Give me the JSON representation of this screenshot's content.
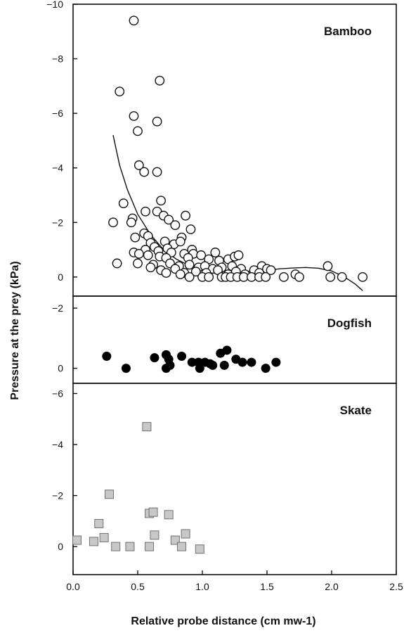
{
  "chart_data": {
    "type": "scatter",
    "xlabel": "Relative probe distance (cm mw-1)",
    "ylabel": "Pressure at the prey (kPa)",
    "xlim": [
      0,
      2.5
    ],
    "xticks": [
      "0.0",
      "0.5",
      "1.0",
      "1.5",
      "2.0",
      "2.5"
    ],
    "panels": [
      {
        "title": "Bamboo",
        "ylim": [
          0.7,
          -10
        ],
        "yticks": [
          {
            "v": -10,
            "label": "−10"
          },
          {
            "v": -8,
            "label": "−8"
          },
          {
            "v": -6,
            "label": "−6"
          },
          {
            "v": -4,
            "label": "−4"
          },
          {
            "v": -2,
            "label": "−2"
          },
          {
            "v": 0,
            "label": "0"
          }
        ],
        "marker": "open-circle",
        "points": [
          [
            0.47,
            -9.4
          ],
          [
            0.36,
            -6.8
          ],
          [
            0.67,
            -7.2
          ],
          [
            0.47,
            -5.9
          ],
          [
            0.5,
            -5.35
          ],
          [
            0.65,
            -5.7
          ],
          [
            0.51,
            -4.1
          ],
          [
            0.55,
            -3.85
          ],
          [
            0.65,
            -3.85
          ],
          [
            0.39,
            -2.7
          ],
          [
            0.68,
            -2.8
          ],
          [
            0.56,
            -2.4
          ],
          [
            0.65,
            -2.4
          ],
          [
            0.46,
            -2.15
          ],
          [
            0.7,
            -2.25
          ],
          [
            0.87,
            -2.25
          ],
          [
            0.31,
            -2.0
          ],
          [
            0.45,
            -2.0
          ],
          [
            0.74,
            -2.1
          ],
          [
            0.79,
            -1.9
          ],
          [
            0.91,
            -1.75
          ],
          [
            0.55,
            -1.6
          ],
          [
            0.58,
            -1.5
          ],
          [
            0.48,
            -1.45
          ],
          [
            0.84,
            -1.45
          ],
          [
            0.71,
            -1.3
          ],
          [
            0.6,
            -1.25
          ],
          [
            0.78,
            -1.2
          ],
          [
            0.83,
            -1.3
          ],
          [
            0.63,
            -1.1
          ],
          [
            0.73,
            -1.05
          ],
          [
            0.92,
            -1.0
          ],
          [
            0.56,
            -1.0
          ],
          [
            0.47,
            -0.9
          ],
          [
            0.66,
            -0.95
          ],
          [
            0.76,
            -0.9
          ],
          [
            0.86,
            -0.85
          ],
          [
            0.93,
            -0.85
          ],
          [
            0.99,
            -0.8
          ],
          [
            1.1,
            -0.9
          ],
          [
            0.51,
            -0.85
          ],
          [
            0.58,
            -0.8
          ],
          [
            0.67,
            -0.75
          ],
          [
            0.72,
            -0.7
          ],
          [
            0.89,
            -0.7
          ],
          [
            1.05,
            -0.65
          ],
          [
            1.13,
            -0.6
          ],
          [
            1.2,
            -0.65
          ],
          [
            1.25,
            -0.75
          ],
          [
            1.28,
            -0.8
          ],
          [
            0.34,
            -0.5
          ],
          [
            0.5,
            -0.5
          ],
          [
            0.62,
            -0.45
          ],
          [
            0.75,
            -0.5
          ],
          [
            0.82,
            -0.4
          ],
          [
            0.9,
            -0.45
          ],
          [
            0.97,
            -0.35
          ],
          [
            1.02,
            -0.4
          ],
          [
            1.08,
            -0.3
          ],
          [
            1.15,
            -0.35
          ],
          [
            1.23,
            -0.4
          ],
          [
            1.3,
            -0.3
          ],
          [
            1.4,
            -0.25
          ],
          [
            1.46,
            -0.4
          ],
          [
            1.5,
            -0.3
          ],
          [
            1.53,
            -0.25
          ],
          [
            0.6,
            -0.35
          ],
          [
            0.68,
            -0.25
          ],
          [
            0.79,
            -0.3
          ],
          [
            0.86,
            -0.15
          ],
          [
            0.95,
            -0.2
          ],
          [
            1.03,
            -0.15
          ],
          [
            1.12,
            -0.25
          ],
          [
            1.2,
            -0.1
          ],
          [
            1.26,
            -0.2
          ],
          [
            1.33,
            -0.1
          ],
          [
            1.44,
            -0.15
          ],
          [
            0.72,
            -0.15
          ],
          [
            0.83,
            -0.1
          ],
          [
            0.9,
            0.0
          ],
          [
            1.0,
            0.0
          ],
          [
            1.05,
            0.0
          ],
          [
            1.15,
            0.0
          ],
          [
            1.18,
            0.0
          ],
          [
            1.22,
            0.0
          ],
          [
            1.27,
            0.0
          ],
          [
            1.32,
            0.0
          ],
          [
            1.38,
            0.0
          ],
          [
            1.44,
            0.0
          ],
          [
            1.49,
            0.0
          ],
          [
            1.63,
            0.0
          ],
          [
            1.72,
            -0.1
          ],
          [
            1.75,
            0.0
          ],
          [
            1.97,
            -0.4
          ],
          [
            1.99,
            0.0
          ],
          [
            2.08,
            0.0
          ],
          [
            2.24,
            0.0
          ]
        ],
        "fit_curve": [
          [
            0.31,
            -5.2
          ],
          [
            0.36,
            -4.1
          ],
          [
            0.42,
            -3.2
          ],
          [
            0.5,
            -2.3
          ],
          [
            0.6,
            -1.55
          ],
          [
            0.7,
            -1.0
          ],
          [
            0.8,
            -0.65
          ],
          [
            0.9,
            -0.42
          ],
          [
            1.0,
            -0.3
          ],
          [
            1.1,
            -0.25
          ],
          [
            1.2,
            -0.22
          ],
          [
            1.3,
            -0.2
          ],
          [
            1.4,
            -0.22
          ],
          [
            1.5,
            -0.25
          ],
          [
            1.6,
            -0.3
          ],
          [
            1.7,
            -0.33
          ],
          [
            1.8,
            -0.35
          ],
          [
            1.9,
            -0.32
          ],
          [
            2.0,
            -0.22
          ],
          [
            2.1,
            0.0
          ],
          [
            2.18,
            0.25
          ],
          [
            2.24,
            0.5
          ]
        ]
      },
      {
        "title": "Dogfish",
        "ylim": [
          0.5,
          -2.4
        ],
        "yticks": [
          {
            "v": -2,
            "label": "−2"
          },
          {
            "v": 0,
            "label": "0"
          }
        ],
        "marker": "filled-circle",
        "points": [
          [
            0.26,
            -0.4
          ],
          [
            0.41,
            0.0
          ],
          [
            0.63,
            -0.35
          ],
          [
            0.72,
            -0.45
          ],
          [
            0.74,
            -0.3
          ],
          [
            0.72,
            0.0
          ],
          [
            0.75,
            -0.1
          ],
          [
            0.84,
            -0.4
          ],
          [
            0.92,
            -0.2
          ],
          [
            0.97,
            -0.2
          ],
          [
            0.98,
            0.0
          ],
          [
            1.02,
            -0.2
          ],
          [
            1.06,
            -0.15
          ],
          [
            1.08,
            -0.1
          ],
          [
            1.14,
            -0.5
          ],
          [
            1.17,
            -0.1
          ],
          [
            1.19,
            -0.6
          ],
          [
            1.26,
            -0.3
          ],
          [
            1.31,
            -0.2
          ],
          [
            1.38,
            -0.2
          ],
          [
            1.49,
            0.0
          ],
          [
            1.57,
            -0.2
          ]
        ]
      },
      {
        "title": "Skate",
        "ylim": [
          1.1,
          -6.4
        ],
        "yticks": [
          {
            "v": -6,
            "label": "−6"
          },
          {
            "v": -4,
            "label": "−4"
          },
          {
            "v": -2,
            "label": "−2"
          },
          {
            "v": 0,
            "label": "0"
          }
        ],
        "marker": "gray-square",
        "points": [
          [
            0.03,
            -0.25
          ],
          [
            0.16,
            -0.2
          ],
          [
            0.2,
            -0.9
          ],
          [
            0.24,
            -0.35
          ],
          [
            0.28,
            -2.05
          ],
          [
            0.33,
            0.0
          ],
          [
            0.44,
            0.0
          ],
          [
            0.57,
            -4.7
          ],
          [
            0.59,
            -1.3
          ],
          [
            0.59,
            0.0
          ],
          [
            0.62,
            -1.35
          ],
          [
            0.63,
            -0.45
          ],
          [
            0.74,
            -1.25
          ],
          [
            0.79,
            -0.25
          ],
          [
            0.84,
            0.0
          ],
          [
            0.87,
            -0.5
          ],
          [
            0.98,
            0.1
          ]
        ]
      }
    ]
  },
  "colors": {
    "axis": "#111111",
    "open_marker_stroke": "#111111",
    "filled_marker": "#000000",
    "square_fill": "#c8c8c8",
    "square_stroke": "#707070"
  }
}
